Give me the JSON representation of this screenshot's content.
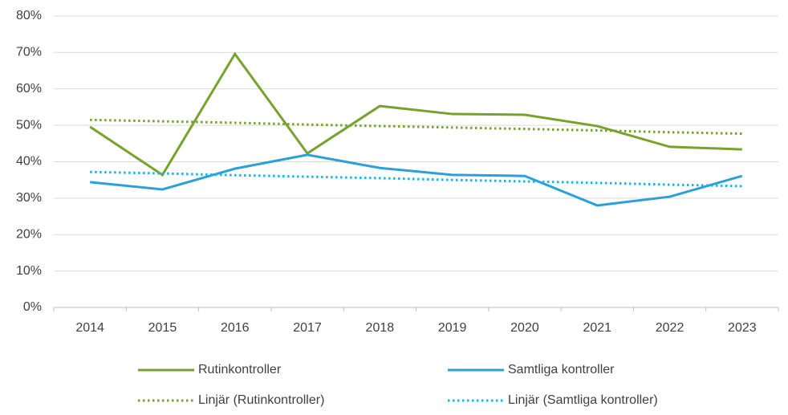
{
  "chart_data": {
    "type": "line",
    "categories": [
      "2014",
      "2015",
      "2016",
      "2017",
      "2018",
      "2019",
      "2020",
      "2021",
      "2022",
      "2023"
    ],
    "series": [
      {
        "name": "Rutinkontroller",
        "color": "#77a22d",
        "style": "solid",
        "values": [
          49.6,
          36.4,
          69.6,
          42.3,
          55.3,
          53.1,
          52.9,
          49.8,
          44.1,
          43.4
        ]
      },
      {
        "name": "Samtliga kontroller",
        "color": "#2e9fd8",
        "style": "solid",
        "values": [
          34.4,
          32.4,
          38.1,
          41.9,
          38.3,
          36.4,
          36.1,
          28.0,
          30.4,
          36.1
        ]
      },
      {
        "name": "Linjär (Rutinkontroller)",
        "color": "#77a22d",
        "style": "dotted",
        "values": [
          51.5,
          51.1,
          50.7,
          50.2,
          49.8,
          49.4,
          49.0,
          48.6,
          48.1,
          47.7
        ]
      },
      {
        "name": "Linjär (Samtliga kontroller)",
        "color": "#19b5e8",
        "style": "dotted",
        "values": [
          37.2,
          36.8,
          36.3,
          35.9,
          35.5,
          35.0,
          34.6,
          34.2,
          33.7,
          33.3
        ]
      }
    ],
    "ylim": [
      0,
      80
    ],
    "yticks": [
      {
        "value": 0,
        "label": "0%"
      },
      {
        "value": 10,
        "label": "10%"
      },
      {
        "value": 20,
        "label": "20%"
      },
      {
        "value": 30,
        "label": "30%"
      },
      {
        "value": 40,
        "label": "40%"
      },
      {
        "value": 50,
        "label": "50%"
      },
      {
        "value": 60,
        "label": "60%"
      },
      {
        "value": 70,
        "label": "70%"
      },
      {
        "value": 80,
        "label": "80%"
      }
    ],
    "grid": true,
    "legend": "bottom"
  }
}
